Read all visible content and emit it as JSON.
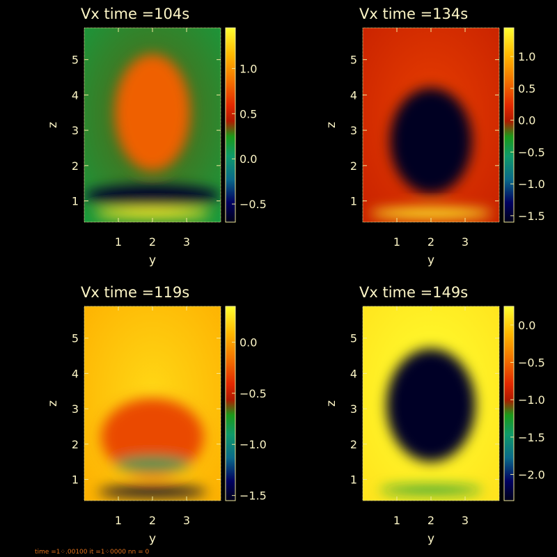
{
  "chart_data": [
    {
      "type": "heatmap",
      "title": "Vx   time =104s",
      "xlabel": "y",
      "ylabel": "z",
      "xlim": [
        0.0,
        4.0
      ],
      "ylim": [
        0.4,
        5.9
      ],
      "x_ticks": [
        "1",
        "2",
        "3"
      ],
      "y_ticks": [
        "1",
        "2",
        "3",
        "4",
        "5"
      ],
      "colorbar_range": [
        -0.7,
        1.45
      ],
      "colorbar_ticks": [
        "-0.5",
        "0.0",
        "0.5",
        "1.0"
      ],
      "background_value": 0.15,
      "features": [
        {
          "kind": "blob",
          "y": 2.0,
          "z": 3.5,
          "width": 2.2,
          "height": 3.3,
          "value": 0.8
        },
        {
          "kind": "band",
          "z": 1.15,
          "height": 0.6,
          "value": -0.65
        },
        {
          "kind": "band",
          "z": 0.65,
          "height": 0.3,
          "width": 3.4,
          "value": 1.4
        }
      ]
    },
    {
      "type": "heatmap",
      "title": "Vx   time =134s",
      "xlabel": "y",
      "ylabel": "z",
      "xlim": [
        0.0,
        4.0
      ],
      "ylim": [
        0.4,
        5.9
      ],
      "x_ticks": [
        "1",
        "2",
        "3"
      ],
      "y_ticks": [
        "1",
        "2",
        "3",
        "4",
        "5"
      ],
      "colorbar_range": [
        -1.6,
        1.45
      ],
      "colorbar_ticks": [
        "-1.5",
        "-1.0",
        "-0.5",
        "0.0",
        "0.5",
        "1.0"
      ],
      "background_value": 0.1,
      "features": [
        {
          "kind": "blob",
          "y": 2.0,
          "z": 2.7,
          "width": 2.4,
          "height": 3.0,
          "value": -1.55
        },
        {
          "kind": "band",
          "z": 0.65,
          "height": 0.3,
          "width": 3.6,
          "value": 1.4
        }
      ]
    },
    {
      "type": "heatmap",
      "title": "Vx   time =119s",
      "xlabel": "y",
      "ylabel": "z",
      "xlim": [
        0.0,
        4.0
      ],
      "ylim": [
        0.4,
        5.9
      ],
      "x_ticks": [
        "1",
        "2",
        "3"
      ],
      "y_ticks": [
        "1",
        "2",
        "3",
        "4",
        "5"
      ],
      "colorbar_range": [
        -1.55,
        0.35
      ],
      "colorbar_ticks": [
        "-1.5",
        "-1.0",
        "-0.5",
        "0.0"
      ],
      "background_value": 0.05,
      "features": [
        {
          "kind": "blob",
          "y": 2.0,
          "z": 2.2,
          "width": 3.0,
          "height": 2.2,
          "value": -0.3
        },
        {
          "kind": "band",
          "z": 1.45,
          "height": 0.4,
          "width": 2.2,
          "value": -0.85
        },
        {
          "kind": "band",
          "z": 0.65,
          "height": 0.3,
          "width": 3.2,
          "value": -1.5
        }
      ]
    },
    {
      "type": "heatmap",
      "title": "Vx   time =149s",
      "xlabel": "y",
      "ylabel": "z",
      "xlim": [
        0.0,
        4.0
      ],
      "ylim": [
        0.4,
        5.9
      ],
      "x_ticks": [
        "1",
        "2",
        "3"
      ],
      "y_ticks": [
        "1",
        "2",
        "3",
        "4",
        "5"
      ],
      "colorbar_range": [
        -2.35,
        0.25
      ],
      "colorbar_ticks": [
        "-2.0",
        "-1.5",
        "-1.0",
        "-0.5",
        "0.0"
      ],
      "background_value": 0.1,
      "features": [
        {
          "kind": "blob",
          "y": 2.0,
          "z": 3.1,
          "width": 2.6,
          "height": 3.2,
          "value": -2.3
        },
        {
          "kind": "band",
          "z": 0.7,
          "height": 0.2,
          "width": 3.0,
          "value": -1.3
        }
      ]
    }
  ],
  "status": {
    "text": "time =1⁘.00100  it =1⁘0000   nn = 0"
  }
}
